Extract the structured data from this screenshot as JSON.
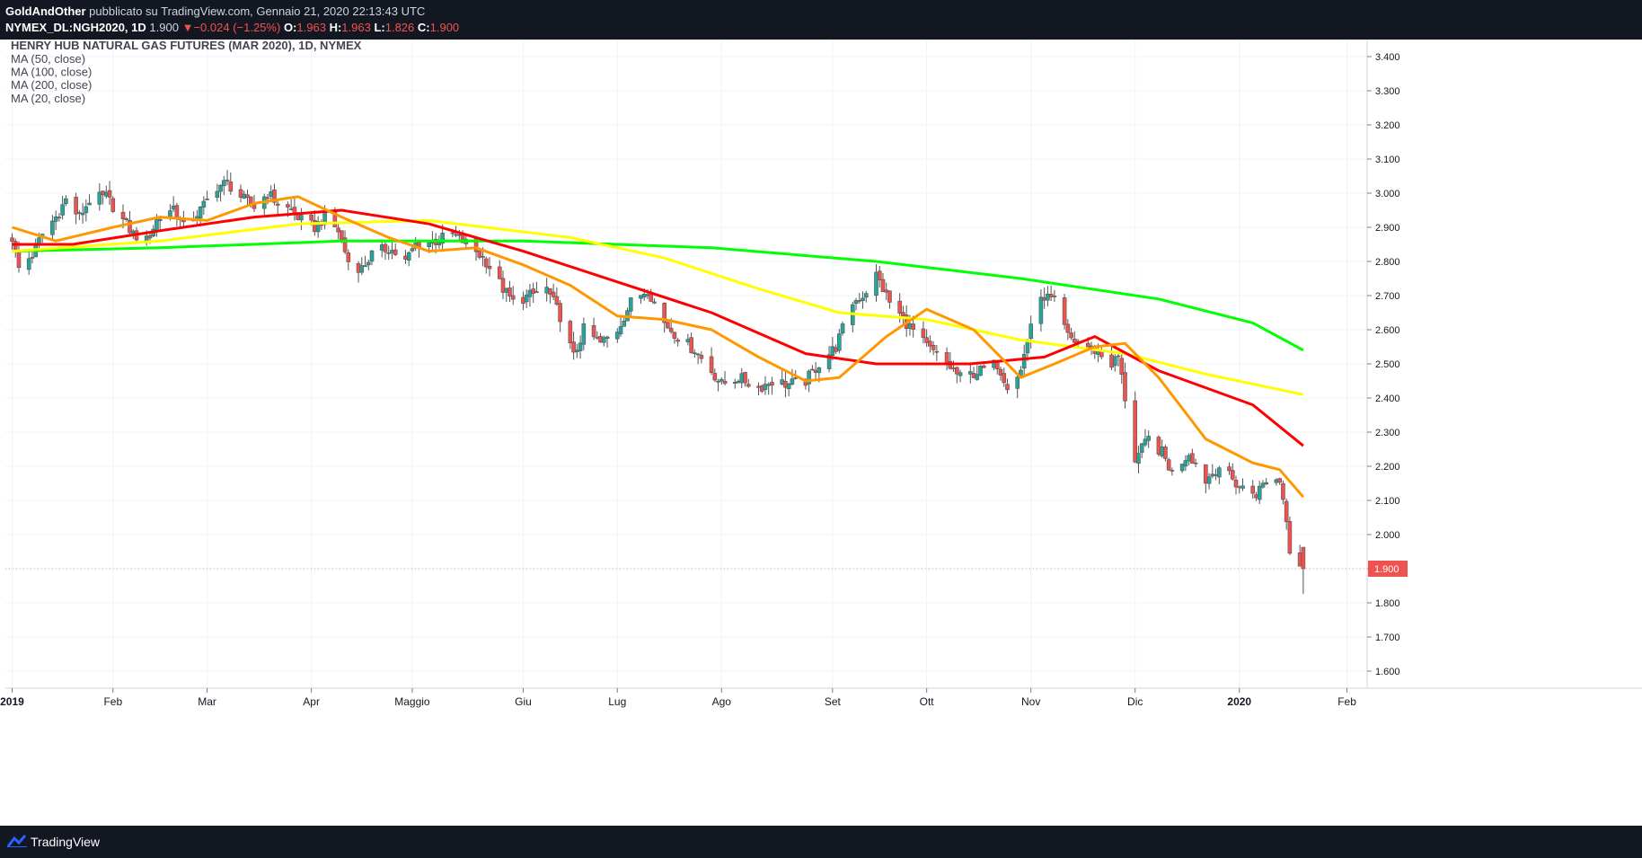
{
  "header": {
    "author": "GoldAndOther",
    "published_on": "pubblicato su TradingView.com, Gennaio 21, 2020 22:13:43 UTC",
    "symbol": "NYMEX_DL:NGH2020, 1D",
    "last": "1.900",
    "change": "−0.024 (−1.25%)",
    "o_label": "O:",
    "o": "1.963",
    "h_label": "H:",
    "h": "1.963",
    "l_label": "L:",
    "l": "1.826",
    "c_label": "C:",
    "c": "1.900"
  },
  "footer": {
    "brand": "TradingView"
  },
  "colors": {
    "up": "#26a69a",
    "down": "#ef5350",
    "ma20": "#ff9800",
    "ma50": "#ff0000",
    "ma100": "#ffff00",
    "ma200": "#00ff00",
    "price_label_bg": "#ef5350"
  },
  "chart_data": {
    "type": "candlestick",
    "title": "HENRY HUB NATURAL GAS FUTURES (MAR 2020), 1D, NYMEX",
    "indicators": [
      "MA (50, close)",
      "MA (100, close)",
      "MA (200, close)",
      "MA (20, close)"
    ],
    "y_ticks": [
      "3.400",
      "3.300",
      "3.200",
      "3.100",
      "3.000",
      "2.900",
      "2.800",
      "2.700",
      "2.600",
      "2.500",
      "2.400",
      "2.300",
      "2.200",
      "2.100",
      "2.000",
      "1.900",
      "1.800",
      "1.700",
      "1.600"
    ],
    "ylim": [
      1.55,
      3.45
    ],
    "x_labels": [
      {
        "label": "2019",
        "date": "2019-01-02",
        "bold": true
      },
      {
        "label": "Feb",
        "date": "2019-02-01"
      },
      {
        "label": "Mar",
        "date": "2019-03-01"
      },
      {
        "label": "Apr",
        "date": "2019-04-01"
      },
      {
        "label": "Maggio",
        "date": "2019-05-01"
      },
      {
        "label": "Giu",
        "date": "2019-06-03"
      },
      {
        "label": "Lug",
        "date": "2019-07-01"
      },
      {
        "label": "Ago",
        "date": "2019-08-01"
      },
      {
        "label": "Set",
        "date": "2019-09-03"
      },
      {
        "label": "Ott",
        "date": "2019-10-01"
      },
      {
        "label": "Nov",
        "date": "2019-11-01"
      },
      {
        "label": "Dic",
        "date": "2019-12-02"
      },
      {
        "label": "2020",
        "date": "2020-01-02",
        "bold": true
      },
      {
        "label": "Feb",
        "date": "2020-02-03"
      }
    ],
    "x_range": [
      "2018-12-31",
      "2020-02-09"
    ],
    "last_price": "1.900",
    "close_path": [
      [
        "2019-01-02",
        2.87
      ],
      [
        "2019-01-04",
        2.78
      ],
      [
        "2019-01-08",
        2.82
      ],
      [
        "2019-01-11",
        2.88
      ],
      [
        "2019-01-15",
        2.93
      ],
      [
        "2019-01-18",
        2.98
      ],
      [
        "2019-01-22",
        2.93
      ],
      [
        "2019-01-25",
        2.98
      ],
      [
        "2019-01-30",
        2.99
      ],
      [
        "2019-02-04",
        2.92
      ],
      [
        "2019-02-07",
        2.88
      ],
      [
        "2019-02-11",
        2.86
      ],
      [
        "2019-02-14",
        2.92
      ],
      [
        "2019-02-19",
        2.96
      ],
      [
        "2019-02-22",
        2.9
      ],
      [
        "2019-02-27",
        2.95
      ],
      [
        "2019-03-04",
        3.02
      ],
      [
        "2019-03-07",
        3.03
      ],
      [
        "2019-03-12",
        2.98
      ],
      [
        "2019-03-15",
        2.96
      ],
      [
        "2019-03-19",
        3.0
      ],
      [
        "2019-03-22",
        2.97
      ],
      [
        "2019-03-26",
        2.95
      ],
      [
        "2019-03-29",
        2.92
      ],
      [
        "2019-04-02",
        2.9
      ],
      [
        "2019-04-05",
        2.93
      ],
      [
        "2019-04-09",
        2.89
      ],
      [
        "2019-04-12",
        2.8
      ],
      [
        "2019-04-16",
        2.78
      ],
      [
        "2019-04-19",
        2.82
      ],
      [
        "2019-04-24",
        2.84
      ],
      [
        "2019-04-29",
        2.8
      ],
      [
        "2019-05-02",
        2.85
      ],
      [
        "2019-05-08",
        2.86
      ],
      [
        "2019-05-13",
        2.88
      ],
      [
        "2019-05-16",
        2.86
      ],
      [
        "2019-05-20",
        2.83
      ],
      [
        "2019-05-23",
        2.8
      ],
      [
        "2019-05-28",
        2.72
      ],
      [
        "2019-05-31",
        2.68
      ],
      [
        "2019-06-05",
        2.7
      ],
      [
        "2019-06-10",
        2.72
      ],
      [
        "2019-06-14",
        2.64
      ],
      [
        "2019-06-18",
        2.52
      ],
      [
        "2019-06-21",
        2.6
      ],
      [
        "2019-06-26",
        2.56
      ],
      [
        "2019-07-01",
        2.6
      ],
      [
        "2019-07-05",
        2.68
      ],
      [
        "2019-07-10",
        2.72
      ],
      [
        "2019-07-15",
        2.62
      ],
      [
        "2019-07-19",
        2.58
      ],
      [
        "2019-07-24",
        2.54
      ],
      [
        "2019-07-29",
        2.48
      ],
      [
        "2019-08-01",
        2.44
      ],
      [
        "2019-08-06",
        2.46
      ],
      [
        "2019-08-12",
        2.43
      ],
      [
        "2019-08-16",
        2.45
      ],
      [
        "2019-08-21",
        2.44
      ],
      [
        "2019-08-26",
        2.45
      ],
      [
        "2019-08-30",
        2.5
      ],
      [
        "2019-09-04",
        2.55
      ],
      [
        "2019-09-09",
        2.68
      ],
      [
        "2019-09-12",
        2.7
      ],
      [
        "2019-09-16",
        2.76
      ],
      [
        "2019-09-20",
        2.68
      ],
      [
        "2019-09-25",
        2.62
      ],
      [
        "2019-10-01",
        2.55
      ],
      [
        "2019-10-07",
        2.5
      ],
      [
        "2019-10-11",
        2.46
      ],
      [
        "2019-10-17",
        2.48
      ],
      [
        "2019-10-22",
        2.5
      ],
      [
        "2019-10-25",
        2.44
      ],
      [
        "2019-10-29",
        2.48
      ],
      [
        "2019-11-01",
        2.62
      ],
      [
        "2019-11-05",
        2.7
      ],
      [
        "2019-11-08",
        2.68
      ],
      [
        "2019-11-12",
        2.58
      ],
      [
        "2019-11-15",
        2.56
      ],
      [
        "2019-11-20",
        2.54
      ],
      [
        "2019-11-25",
        2.5
      ],
      [
        "2019-11-27",
        2.52
      ],
      [
        "2019-12-02",
        2.22
      ],
      [
        "2019-12-06",
        2.28
      ],
      [
        "2019-12-10",
        2.24
      ],
      [
        "2019-12-13",
        2.18
      ],
      [
        "2019-12-18",
        2.24
      ],
      [
        "2019-12-23",
        2.16
      ],
      [
        "2019-12-27",
        2.2
      ],
      [
        "2020-01-02",
        2.14
      ],
      [
        "2020-01-07",
        2.12
      ],
      [
        "2020-01-10",
        2.16
      ],
      [
        "2020-01-14",
        2.16
      ],
      [
        "2020-01-16",
        2.05
      ],
      [
        "2020-01-17",
        1.96
      ],
      [
        "2020-01-21",
        1.9
      ]
    ],
    "ma20": [
      [
        "2019-01-02",
        2.9
      ],
      [
        "2019-01-15",
        2.86
      ],
      [
        "2019-02-01",
        2.9
      ],
      [
        "2019-02-15",
        2.93
      ],
      [
        "2019-03-01",
        2.92
      ],
      [
        "2019-03-15",
        2.97
      ],
      [
        "2019-03-28",
        2.99
      ],
      [
        "2019-04-10",
        2.93
      ],
      [
        "2019-04-24",
        2.87
      ],
      [
        "2019-05-06",
        2.83
      ],
      [
        "2019-05-20",
        2.84
      ],
      [
        "2019-06-03",
        2.79
      ],
      [
        "2019-06-17",
        2.73
      ],
      [
        "2019-07-01",
        2.64
      ],
      [
        "2019-07-15",
        2.63
      ],
      [
        "2019-07-29",
        2.6
      ],
      [
        "2019-08-12",
        2.52
      ],
      [
        "2019-08-26",
        2.45
      ],
      [
        "2019-09-05",
        2.46
      ],
      [
        "2019-09-19",
        2.58
      ],
      [
        "2019-10-01",
        2.66
      ],
      [
        "2019-10-15",
        2.6
      ],
      [
        "2019-10-29",
        2.46
      ],
      [
        "2019-11-08",
        2.5
      ],
      [
        "2019-11-20",
        2.55
      ],
      [
        "2019-11-29",
        2.56
      ],
      [
        "2019-12-09",
        2.46
      ],
      [
        "2019-12-23",
        2.28
      ],
      [
        "2020-01-06",
        2.21
      ],
      [
        "2020-01-14",
        2.19
      ],
      [
        "2020-01-21",
        2.11
      ]
    ],
    "ma50": [
      [
        "2019-01-02",
        2.85
      ],
      [
        "2019-01-20",
        2.85
      ],
      [
        "2019-02-15",
        2.89
      ],
      [
        "2019-03-15",
        2.93
      ],
      [
        "2019-04-10",
        2.95
      ],
      [
        "2019-05-06",
        2.91
      ],
      [
        "2019-06-03",
        2.83
      ],
      [
        "2019-07-01",
        2.74
      ],
      [
        "2019-07-29",
        2.65
      ],
      [
        "2019-08-26",
        2.53
      ],
      [
        "2019-09-16",
        2.5
      ],
      [
        "2019-10-14",
        2.5
      ],
      [
        "2019-11-05",
        2.52
      ],
      [
        "2019-11-20",
        2.58
      ],
      [
        "2019-12-09",
        2.48
      ],
      [
        "2020-01-06",
        2.38
      ],
      [
        "2020-01-21",
        2.26
      ]
    ],
    "ma100": [
      [
        "2019-01-02",
        2.83
      ],
      [
        "2019-02-15",
        2.86
      ],
      [
        "2019-03-28",
        2.91
      ],
      [
        "2019-05-06",
        2.92
      ],
      [
        "2019-06-17",
        2.87
      ],
      [
        "2019-07-15",
        2.81
      ],
      [
        "2019-08-12",
        2.72
      ],
      [
        "2019-09-05",
        2.65
      ],
      [
        "2019-10-01",
        2.63
      ],
      [
        "2019-10-29",
        2.57
      ],
      [
        "2019-11-29",
        2.53
      ],
      [
        "2019-12-23",
        2.47
      ],
      [
        "2020-01-21",
        2.41
      ]
    ],
    "ma200": [
      [
        "2019-01-02",
        2.83
      ],
      [
        "2019-02-15",
        2.84
      ],
      [
        "2019-04-10",
        2.86
      ],
      [
        "2019-06-03",
        2.86
      ],
      [
        "2019-07-29",
        2.84
      ],
      [
        "2019-09-16",
        2.8
      ],
      [
        "2019-10-29",
        2.75
      ],
      [
        "2019-12-09",
        2.69
      ],
      [
        "2020-01-06",
        2.62
      ],
      [
        "2020-01-21",
        2.54
      ]
    ]
  }
}
